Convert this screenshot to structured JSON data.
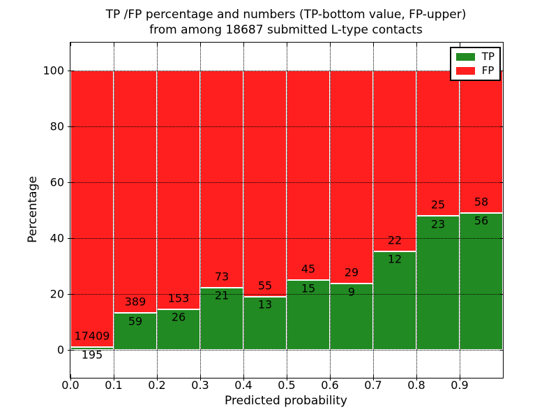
{
  "title": {
    "line1": "TP /FP percentage and numbers (TP-bottom value, FP-upper)",
    "line2": "from among 18687 submitted L-type contacts"
  },
  "chart_data": {
    "type": "bar",
    "stacked": true,
    "title": "TP /FP percentage and numbers (TP-bottom value, FP-upper) from among 18687 submitted L-type contacts",
    "xlabel": "Predicted probability",
    "ylabel": "Percentage",
    "total_contacts": 18687,
    "xlim": [
      0.0,
      1.0
    ],
    "ylim": [
      -10,
      110
    ],
    "bin_edges": [
      0.0,
      0.1,
      0.2,
      0.3,
      0.4,
      0.5,
      0.6,
      0.7,
      0.8,
      0.9,
      1.0
    ],
    "x_ticks": [
      0.0,
      0.1,
      0.2,
      0.3,
      0.4,
      0.5,
      0.6,
      0.7,
      0.8,
      0.9
    ],
    "x_tick_labels": [
      "0.0",
      "0.1",
      "0.2",
      "0.3",
      "0.4",
      "0.5",
      "0.6",
      "0.7",
      "0.8",
      "0.9"
    ],
    "y_ticks": [
      0,
      20,
      40,
      60,
      80,
      100
    ],
    "y_tick_labels": [
      "0",
      "20",
      "40",
      "60",
      "80",
      "100"
    ],
    "grid": "dotted, both axes",
    "legend_position": "upper right",
    "series": [
      {
        "name": "TP",
        "color": "#228a22",
        "counts": [
          195,
          59,
          26,
          21,
          13,
          15,
          9,
          12,
          23,
          56
        ]
      },
      {
        "name": "FP",
        "color": "#ff1f1f",
        "counts": [
          17409,
          389,
          153,
          73,
          55,
          45,
          29,
          22,
          25,
          58
        ]
      }
    ],
    "tp_percent_height": [
      1.11,
      13.17,
      14.53,
      22.34,
      19.12,
      25.0,
      23.68,
      35.29,
      47.92,
      49.12
    ]
  }
}
